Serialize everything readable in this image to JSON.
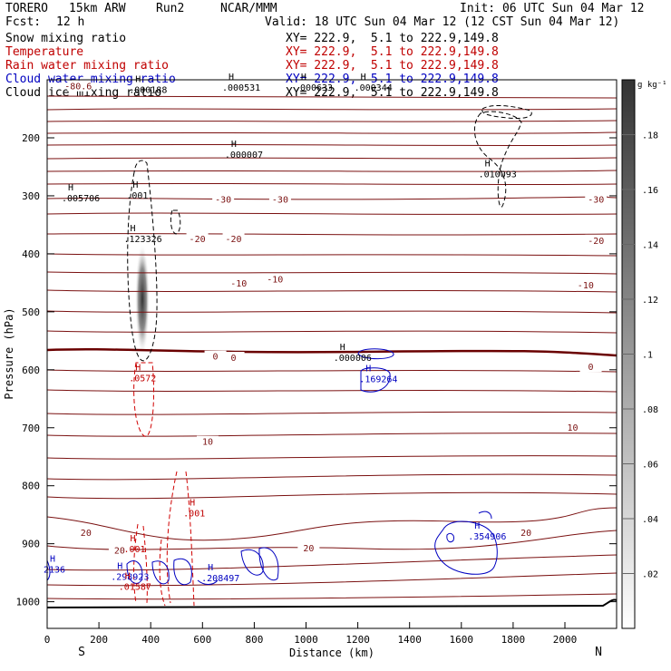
{
  "header": {
    "model": "TORERO",
    "resolution": "15km ARW",
    "run": "Run2",
    "center": "NCAR/MMM",
    "init": "Init: 06 UTC Sun 04 Mar 12",
    "fcst_label": "Fcst:",
    "fcst_value": "12 h",
    "valid": "Valid: 18 UTC Sun 04 Mar 12 (12 CST Sun 04 Mar 12)"
  },
  "fields": [
    {
      "name": "Snow mixing ratio",
      "xy": "XY= 222.9,  5.1 to 222.9,149.8",
      "color": "#000000"
    },
    {
      "name": "Temperature",
      "xy": "XY= 222.9,  5.1 to 222.9,149.8",
      "color": "#c00000"
    },
    {
      "name": "Rain water mixing ratio",
      "xy": "XY= 222.9,  5.1 to 222.9,149.8",
      "color": "#c00000"
    },
    {
      "name": "Cloud water mixing ratio",
      "xy": "XY= 222.9,  5.1 to 222.9,149.8",
      "color": "#0000c0"
    },
    {
      "name": "Cloud ice mixing ratio",
      "xy": "XY= 222.9,  5.1 to 222.9,149.8",
      "color": "#000000"
    }
  ],
  "chart_data": {
    "type": "cross-section contour",
    "xlabel": "Distance (km)",
    "ylabel": "Pressure (hPa)",
    "xlim": [
      0,
      2200
    ],
    "ylim": [
      1050,
      100
    ],
    "x_ticks": [
      "0",
      "200",
      "400",
      "600",
      "800",
      "1000",
      "1200",
      "1400",
      "1600",
      "1800",
      "2000"
    ],
    "y_ticks": [
      "200",
      "300",
      "400",
      "500",
      "600",
      "700",
      "800",
      "900",
      "1000"
    ],
    "end_labels": {
      "left": "S",
      "right": "N"
    },
    "colorbar": {
      "unit": "g kg⁻¹",
      "ticks": [
        ".02",
        ".04",
        ".06",
        ".08",
        ".1",
        ".12",
        ".14",
        ".16",
        ".18"
      ],
      "min": 0,
      "max": 0.2
    },
    "temperature_labels": [
      {
        "text": "-80.6",
        "x": 120,
        "p": 112
      },
      {
        "text": "-30",
        "x": 680,
        "p": 307
      },
      {
        "text": "-30",
        "x": 900,
        "p": 307
      },
      {
        "text": "-30",
        "x": 2120,
        "p": 307
      },
      {
        "text": "-20",
        "x": 580,
        "p": 375
      },
      {
        "text": "-20",
        "x": 720,
        "p": 375
      },
      {
        "text": "-20",
        "x": 2120,
        "p": 378
      },
      {
        "text": "-10",
        "x": 740,
        "p": 452
      },
      {
        "text": "-10",
        "x": 880,
        "p": 445
      },
      {
        "text": "-10",
        "x": 2080,
        "p": 455
      },
      {
        "text": "0",
        "x": 650,
        "p": 578
      },
      {
        "text": "0",
        "x": 720,
        "p": 580
      },
      {
        "text": "0",
        "x": 2100,
        "p": 596
      },
      {
        "text": "10",
        "x": 620,
        "p": 725
      },
      {
        "text": "10",
        "x": 2030,
        "p": 700
      },
      {
        "text": "20",
        "x": 150,
        "p": 882
      },
      {
        "text": "20",
        "x": 280,
        "p": 912
      },
      {
        "text": "20",
        "x": 1010,
        "p": 908
      },
      {
        "text": "20",
        "x": 1850,
        "p": 882
      }
    ],
    "extrema_labels": [
      {
        "text": ".000188",
        "x": 330,
        "p": 118,
        "color": "#000000"
      },
      {
        "text": ".000531",
        "x": 690,
        "p": 114,
        "color": "#000000"
      },
      {
        "text": ".000633",
        "x": 970,
        "p": 114,
        "color": "#000000"
      },
      {
        "text": ".000344",
        "x": 1200,
        "p": 114,
        "color": "#000000"
      },
      {
        "text": ".000007",
        "x": 700,
        "p": 230,
        "color": "#000000"
      },
      {
        "text": ".010093",
        "x": 1680,
        "p": 263,
        "color": "#000000"
      },
      {
        "text": ".005706",
        "x": 70,
        "p": 305,
        "color": "#000000"
      },
      {
        "text": ".001",
        "x": 320,
        "p": 300,
        "color": "#000000"
      },
      {
        "text": ".123326",
        "x": 310,
        "p": 375,
        "color": "#000000"
      },
      {
        "text": ".000006",
        "x": 1120,
        "p": 580,
        "color": "#000000"
      },
      {
        "text": ".169264",
        "x": 1220,
        "p": 617,
        "color": "#0000c0"
      },
      {
        "text": ".0572",
        "x": 330,
        "p": 615,
        "color": "#c00000"
      },
      {
        "text": ".001",
        "x": 540,
        "p": 848,
        "color": "#c00000"
      },
      {
        "text": ".001",
        "x": 310,
        "p": 910,
        "color": "#c00000"
      },
      {
        "text": ".354906",
        "x": 1640,
        "p": 888,
        "color": "#0000c0"
      },
      {
        "text": ".208497",
        "x": 610,
        "p": 960,
        "color": "#0000c0"
      },
      {
        "text": ".298923",
        "x": 260,
        "p": 958,
        "color": "#0000c0"
      },
      {
        "text": ".01587",
        "x": 290,
        "p": 975,
        "color": "#c00000"
      },
      {
        "text": "2136",
        "x": 0,
        "p": 945,
        "color": "#0000c0"
      }
    ]
  }
}
